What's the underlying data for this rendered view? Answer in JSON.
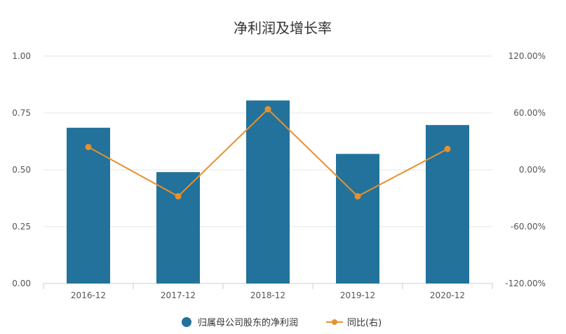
{
  "chart_data": {
    "type": "bar",
    "title": "净利润及增长率",
    "categories": [
      "2016-12",
      "2017-12",
      "2018-12",
      "2019-12",
      "2020-12"
    ],
    "series": [
      {
        "name": "归属母公司股东的净利润",
        "type": "bar",
        "axis": "left",
        "values": [
          0.685,
          0.49,
          0.805,
          0.57,
          0.697
        ]
      },
      {
        "name": "同比(右)",
        "type": "line",
        "axis": "right",
        "values": [
          24,
          -28,
          64,
          -28,
          22
        ]
      }
    ],
    "y_left": {
      "range": [
        0,
        1.0
      ],
      "ticks": [
        "0.00",
        "0.25",
        "0.50",
        "0.75",
        "1.00"
      ]
    },
    "y_right": {
      "range": [
        -120,
        120
      ],
      "ticks": [
        "-120.00%",
        "-60.00%",
        "0.00%",
        "60.00%",
        "120.00%"
      ]
    },
    "grid": true,
    "legend": "bottom-center",
    "colors": {
      "bar": "#22729c",
      "line": "#e8902c",
      "grid": "#e6e6e6",
      "axis": "#cccccc"
    }
  }
}
